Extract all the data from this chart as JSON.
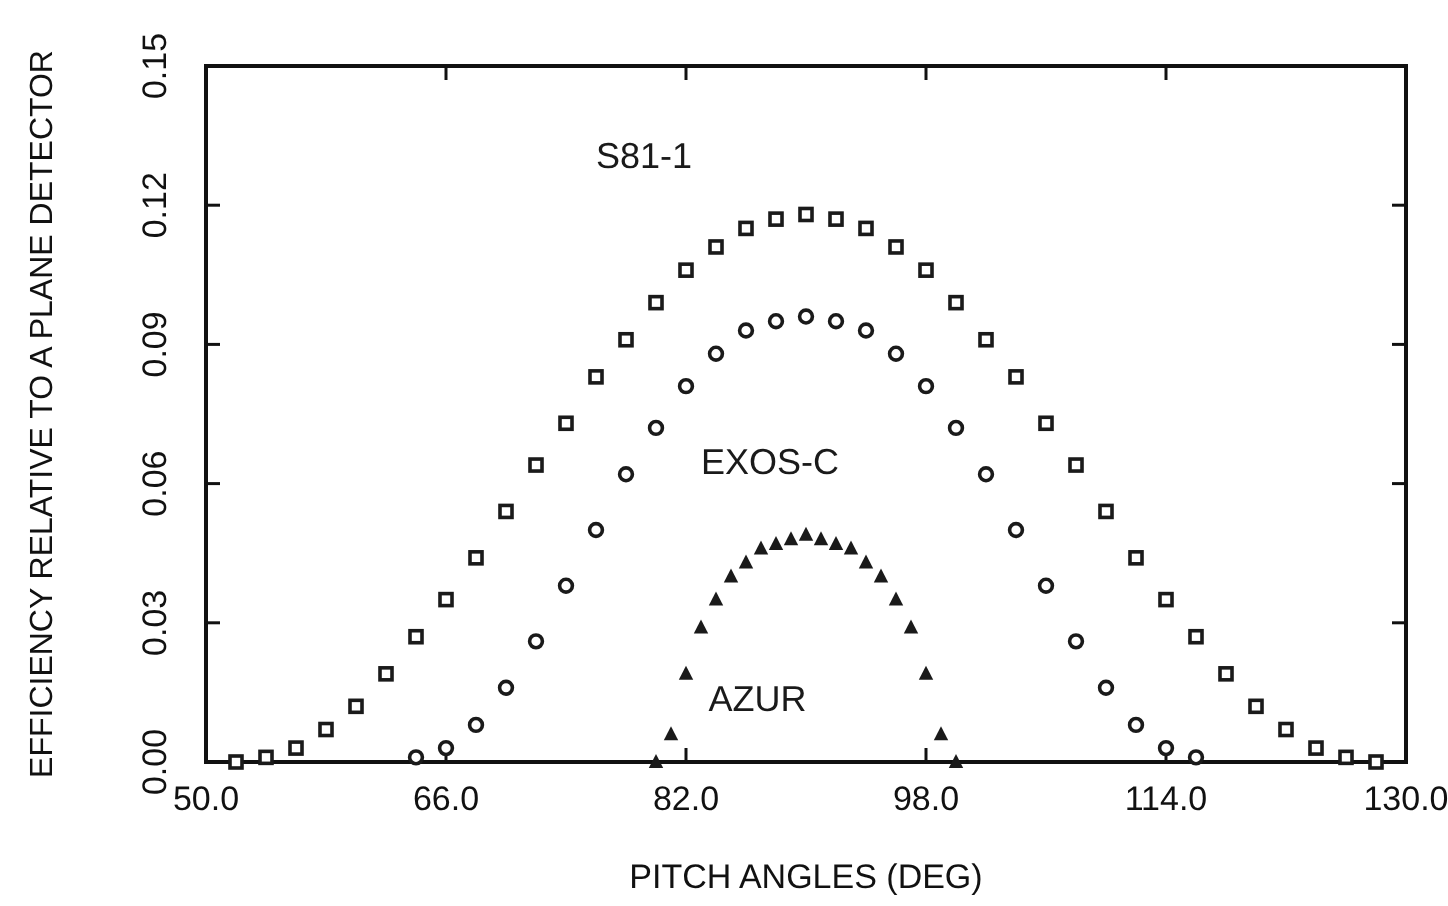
{
  "chart_data": {
    "type": "scatter",
    "xlabel": "PITCH ANGLES (DEG)",
    "ylabel": "EFFICIENCY RELATIVE TO A PLANE DETECTOR",
    "xlim": [
      50,
      130
    ],
    "xticks": [
      {
        "value": 50,
        "label": "50.0"
      },
      {
        "value": 66,
        "label": "66.0"
      },
      {
        "value": 82,
        "label": "82.0"
      },
      {
        "value": 98,
        "label": "98.0"
      },
      {
        "value": 114,
        "label": "114.0"
      },
      {
        "value": 130,
        "label": "130.0"
      }
    ],
    "ylim": [
      0,
      0.15
    ],
    "yticks": [
      {
        "value": 0,
        "label": "0.00"
      },
      {
        "value": 0.03,
        "label": "0.03"
      },
      {
        "value": 0.06,
        "label": "0.06"
      },
      {
        "value": 0.09,
        "label": "0.09"
      },
      {
        "value": 0.12,
        "label": "0.12"
      },
      {
        "value": 0.15,
        "label": "0.15"
      }
    ],
    "grid": false,
    "series": [
      {
        "name": "S81-1",
        "color": "#1a1a1a",
        "marker": "square",
        "x": [
          52,
          54,
          56,
          58,
          60,
          62,
          64,
          66,
          68,
          70,
          72,
          74,
          76,
          78,
          80,
          82,
          84,
          86,
          88,
          90,
          92,
          94,
          96,
          98,
          100,
          102,
          104,
          106,
          108,
          110,
          112,
          114,
          116,
          118,
          120,
          122,
          124,
          126,
          128
        ],
        "values": [
          0,
          0.001,
          0.003,
          0.007,
          0.012,
          0.019,
          0.027,
          0.035,
          0.044,
          0.054,
          0.064,
          0.073,
          0.083,
          0.091,
          0.099,
          0.106,
          0.111,
          0.115,
          0.117,
          0.118,
          0.117,
          0.115,
          0.111,
          0.106,
          0.099,
          0.091,
          0.083,
          0.073,
          0.064,
          0.054,
          0.044,
          0.035,
          0.027,
          0.019,
          0.012,
          0.007,
          0.003,
          0.001,
          0
        ]
      },
      {
        "name": "EXOS-C",
        "color": "#1a1a1a",
        "marker": "circle",
        "x": [
          64,
          66,
          68,
          70,
          72,
          74,
          76,
          78,
          80,
          82,
          84,
          86,
          88,
          90,
          92,
          94,
          96,
          98,
          100,
          102,
          104,
          106,
          108,
          110,
          112,
          114,
          116
        ],
        "values": [
          0.001,
          0.003,
          0.008,
          0.016,
          0.026,
          0.038,
          0.05,
          0.062,
          0.072,
          0.081,
          0.088,
          0.093,
          0.095,
          0.096,
          0.095,
          0.093,
          0.088,
          0.081,
          0.072,
          0.062,
          0.05,
          0.038,
          0.026,
          0.016,
          0.008,
          0.003,
          0.001
        ]
      },
      {
        "name": "AZUR",
        "color": "#1a1a1a",
        "marker": "triangle",
        "x": [
          80,
          81,
          82,
          83,
          84,
          85,
          86,
          87,
          88,
          89,
          90,
          91,
          92,
          93,
          94,
          95,
          96,
          97,
          98,
          99,
          100
        ],
        "values": [
          0,
          0.006,
          0.019,
          0.029,
          0.035,
          0.04,
          0.043,
          0.046,
          0.047,
          0.048,
          0.049,
          0.048,
          0.047,
          0.046,
          0.043,
          0.04,
          0.035,
          0.029,
          0.019,
          0.006,
          0
        ]
      }
    ]
  }
}
